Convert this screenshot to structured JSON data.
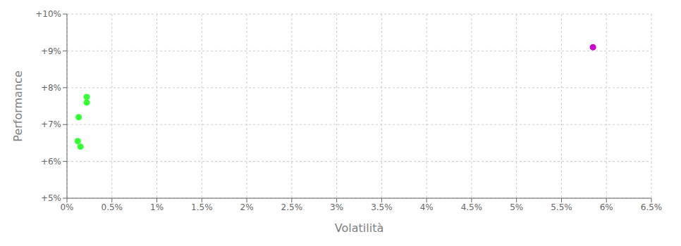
{
  "chart_data": {
    "type": "scatter",
    "xlabel": "Volatilità",
    "ylabel": "Performance",
    "xlim": [
      0.0,
      0.065
    ],
    "ylim": [
      0.05,
      0.1
    ],
    "xticks": [
      {
        "value": 0.0,
        "label": "0%"
      },
      {
        "value": 0.005,
        "label": "0.5%"
      },
      {
        "value": 0.01,
        "label": "1%"
      },
      {
        "value": 0.015,
        "label": "1.5%"
      },
      {
        "value": 0.02,
        "label": "2%"
      },
      {
        "value": 0.025,
        "label": "2.5%"
      },
      {
        "value": 0.03,
        "label": "3%"
      },
      {
        "value": 0.035,
        "label": "3.5%"
      },
      {
        "value": 0.04,
        "label": "4%"
      },
      {
        "value": 0.045,
        "label": "4.5%"
      },
      {
        "value": 0.05,
        "label": "5%"
      },
      {
        "value": 0.055,
        "label": "5.5%"
      },
      {
        "value": 0.06,
        "label": "6%"
      },
      {
        "value": 0.065,
        "label": "6.5%"
      }
    ],
    "yticks": [
      {
        "value": 0.05,
        "label": "+5%"
      },
      {
        "value": 0.06,
        "label": "+6%"
      },
      {
        "value": 0.07,
        "label": "+7%"
      },
      {
        "value": 0.08,
        "label": "+8%"
      },
      {
        "value": 0.09,
        "label": "+9%"
      },
      {
        "value": 0.1,
        "label": "+10%"
      }
    ],
    "grid": true,
    "series": [
      {
        "color": "#33ff33",
        "x": [
          0.0022,
          0.0022,
          0.0013,
          0.0012,
          0.0015
        ],
        "values": [
          0.0775,
          0.076,
          0.072,
          0.0655,
          0.064
        ]
      },
      {
        "color": "#cc00cc",
        "x": [
          0.0585
        ],
        "values": [
          0.091
        ]
      }
    ]
  }
}
